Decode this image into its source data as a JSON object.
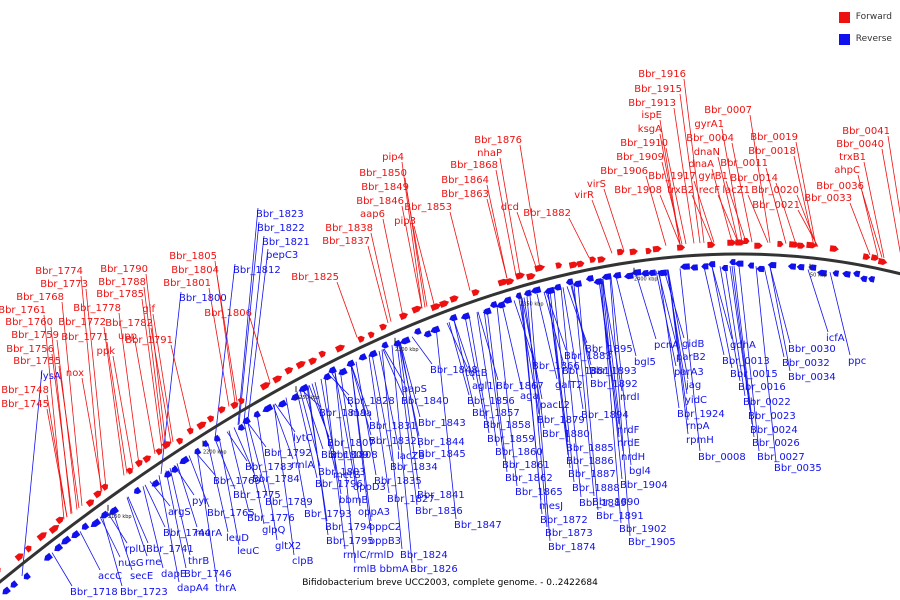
{
  "legend": {
    "forward": {
      "label": "Forward",
      "color": "#ee1111"
    },
    "reverse": {
      "label": "Reverse",
      "color": "#1111ee"
    }
  },
  "caption": "Bifidobacterium breve UCC2003, complete genome. - 0..2422684",
  "ticks": [
    "2150 kbp",
    "2200 kbp",
    "2250 kbp",
    "2300 kbp",
    "2350 kbp",
    "2400 kbp",
    "50 kbp"
  ],
  "forward_labels": [
    "Bbr_1916",
    "Bbr_1915",
    "Bbr_1913",
    "ispE",
    "ksgA",
    "Bbr_1910",
    "Bbr_1909",
    "Bbr_1906",
    "Bbr_1917",
    "Bbr_1908",
    "trxB2",
    "virS",
    "virR",
    "Bbr_0007",
    "gyrA1",
    "Bbr_0004",
    "dnaN",
    "dnaA",
    "gyrB1",
    "recF",
    "Bbr_0011",
    "lacZ1",
    "Bbr_0019",
    "Bbr_0018",
    "Bbr_0014",
    "Bbr_0020",
    "Bbr_0021",
    "Bbr_0041",
    "Bbr_0040",
    "trxB1",
    "ahpC",
    "Bbr_0036",
    "Bbr_0033",
    "Bbr_1876",
    "nhaP",
    "Bbr_1868",
    "Bbr_1864",
    "Bbr_1863",
    "dcd",
    "Bbr_1882",
    "pip4",
    "Bbr_1850",
    "Bbr_1849",
    "Bbr_1846",
    "aap6",
    "pip3",
    "Bbr_1853",
    "Bbr_1838",
    "Bbr_1837",
    "Bbr_1825",
    "Bbr_1805",
    "Bbr_1804",
    "Bbr_1801",
    "Bbr_1806",
    "Bbr_1774",
    "Bbr_1773",
    "Bbr_1768",
    "Bbr_1761",
    "Bbr_1760",
    "Bbr_1759",
    "Bbr_1756",
    "Bbr_1755",
    "nox",
    "Bbr_1748",
    "Bbr_1745",
    "Bbr_1790",
    "Bbr_1788",
    "Bbr_1785",
    "Bbr_1778",
    "Bbr_1782",
    "Bbr_1772",
    "upp",
    "Bbr_1771",
    "ppk",
    "gif",
    "Bbr_1791"
  ],
  "reverse_labels": [
    "Bbr_1823",
    "Bbr_1822",
    "Bbr_1821",
    "pepC3",
    "Bbr_1812",
    "Bbr_1800",
    "lysA",
    "Bbr_1848",
    "aapS",
    "Bbr_1840",
    "Bbr_1843",
    "Bbr_1844",
    "Bbr_1845",
    "Bbr_1828",
    "maa",
    "Bbr_1819",
    "Bbr_1831",
    "lytC",
    "Bbr_1807",
    "Bbr_1832",
    "Bbr_1809",
    "lacZ8",
    "Bbr_1808",
    "Bbr_1834",
    "Bbr_1792",
    "rmlA",
    "Bbr_1783",
    "Bbr_1803",
    "metG",
    "Bbr_1784",
    "oppD3",
    "Bbr_1835",
    "Bbr_1841",
    "Bbr_1775",
    "Bbr_1796",
    "Bbr_1789",
    "bbmB",
    "oppA3",
    "Bbr_1827",
    "Bbr_1836",
    "Bbr_1769",
    "Bbr_1776",
    "Bbr_1793",
    "Bbr_1765",
    "glpQ",
    "oppC2",
    "Bbr_1794",
    "Bbr_1795",
    "oppB3",
    "gltX2",
    "rmlC/rmlD",
    "Bbr_1824",
    "clpB",
    "rmlB bbmA",
    "Bbr_1826",
    "Bbr_1866",
    "tdcB",
    "agl1",
    "Bbr_1867",
    "aga",
    "Bbr_1856",
    "Bbr_1857",
    "Bbr_1858",
    "Bbr_1859",
    "Bbr_1860",
    "Bbr_1861",
    "Bbr_1862",
    "Bbr_1865",
    "mesJ",
    "Bbr_1872",
    "Bbr_1873",
    "Bbr_1874",
    "Bbr_1847",
    "Bbr_1883",
    "Bbr_1881",
    "galT2",
    "pacL2",
    "Bbr_1879",
    "Bbr_1880",
    "Bbr_1885",
    "Bbr_1886",
    "Bbr_1887",
    "Bbr_1888",
    "Bbr_1889",
    "Bbr_1890",
    "Bbr_1891",
    "Bbr_1902",
    "Bbr_1905",
    "Bbr_1895",
    "Bbr_1893",
    "Bbr_1892",
    "nrdI",
    "Bbr_1894",
    "nrdF",
    "nrdE",
    "nrdH",
    "bgl4",
    "Bbr_1904",
    "bgl5",
    "pcnA",
    "gidB",
    "parB2",
    "parA3",
    "jag",
    "yidC",
    "Bbr_1924",
    "rnpA",
    "rpmH",
    "Bbr_0008",
    "gdhA",
    "Bbr_0013",
    "Bbr_0015",
    "Bbr_0016",
    "Bbr_0022",
    "Bbr_0023",
    "Bbr_0024",
    "Bbr_0026",
    "Bbr_0027",
    "Bbr_0035",
    "Bbr_0030",
    "Bbr_0032",
    "Bbr_0034",
    "icfA",
    "ppc",
    "argS",
    "pyr",
    "murA",
    "leuD",
    "leuC",
    "thrB",
    "Bbr_1744",
    "Bbr_1741",
    "rplU",
    "nusG",
    "rne",
    "secE",
    "dapE",
    "Bbr_1746",
    "dapA4",
    "thrA",
    "accC",
    "Bbr_1718",
    "Bbr_1723"
  ]
}
